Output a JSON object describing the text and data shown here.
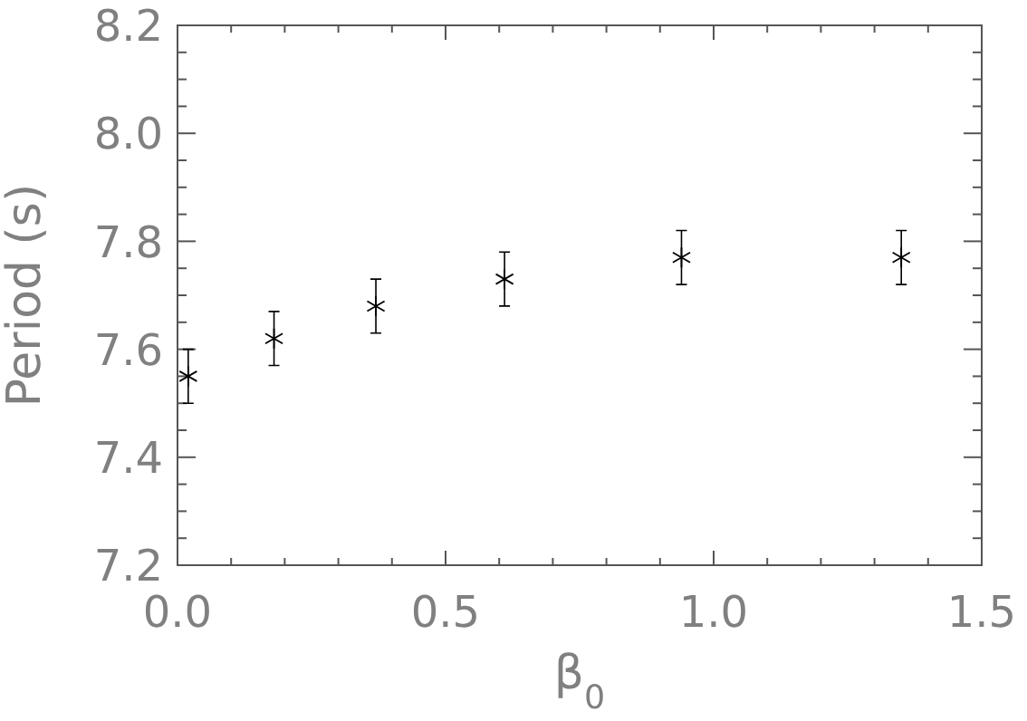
{
  "chart_data": {
    "type": "scatter",
    "xlabel": "β$_{0}$",
    "ylabel": "Period (s)",
    "x": [
      0.02,
      0.18,
      0.37,
      0.61,
      0.94,
      1.35
    ],
    "series": [
      {
        "color": "#000000",
        "values": [
          7.55,
          7.62,
          7.68,
          7.73,
          7.77,
          7.77
        ],
        "errors": [
          0.05,
          0.05,
          0.05,
          0.05,
          0.05,
          0.05
        ]
      }
    ],
    "marker": "cross",
    "grid": false,
    "xlim": [
      0,
      1.5
    ],
    "ylim": [
      7.2,
      8.2
    ],
    "xticks": [
      {
        "value": 0,
        "label": "0.0"
      },
      {
        "value": 0.1,
        "label": null
      },
      {
        "value": 0.2,
        "label": null
      },
      {
        "value": 0.3,
        "label": null
      },
      {
        "value": 0.4,
        "label": null
      },
      {
        "value": 0.5,
        "label": "0.5"
      },
      {
        "value": 0.6,
        "label": null
      },
      {
        "value": 0.7,
        "label": null
      },
      {
        "value": 0.8,
        "label": null
      },
      {
        "value": 0.9,
        "label": null
      },
      {
        "value": 1,
        "label": "1.0"
      },
      {
        "value": 1.1,
        "label": null
      },
      {
        "value": 1.2,
        "label": null
      },
      {
        "value": 1.3,
        "label": null
      },
      {
        "value": 1.4,
        "label": null
      },
      {
        "value": 1.5,
        "label": "1.5"
      }
    ],
    "yticks": [
      7.2,
      {
        "value": 7.25,
        "label": null
      },
      {
        "value": 7.3,
        "label": null
      },
      {
        "value": 7.35,
        "label": null
      },
      7.4,
      {
        "value": 7.45,
        "label": null
      },
      {
        "value": 7.5,
        "label": null
      },
      {
        "value": 7.55,
        "label": null
      },
      7.6,
      {
        "value": 7.65,
        "label": null
      },
      {
        "value": 7.7,
        "label": null
      },
      {
        "value": 7.75,
        "label": null
      },
      7.8,
      {
        "value": 7.85,
        "label": null
      },
      {
        "value": 7.9,
        "label": null
      },
      {
        "value": 7.95,
        "label": null
      },
      {
        "value": 8.0,
        "label": "8.0"
      },
      {
        "value": 8.05,
        "label": null
      },
      {
        "value": 8.1,
        "label": null
      },
      {
        "value": 8.15,
        "label": null
      },
      8.2
    ]
  }
}
